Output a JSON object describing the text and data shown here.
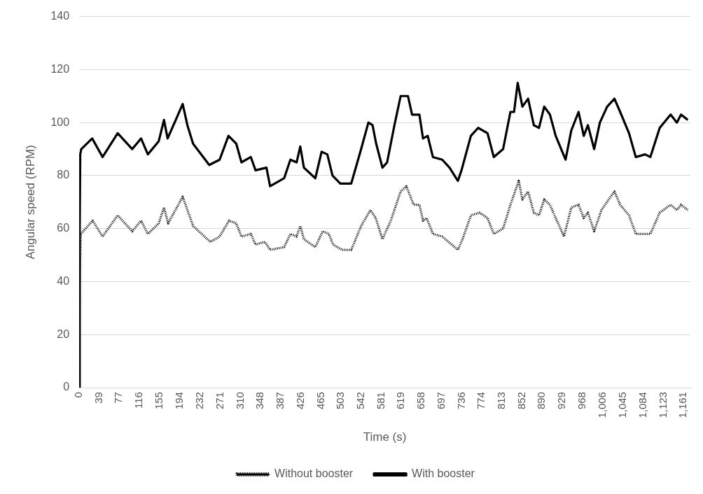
{
  "chart_data": {
    "type": "line",
    "xlabel": "Time (s)",
    "ylabel": "Angular speed (RPM)",
    "xlim": [
      0,
      1175
    ],
    "ylim": [
      0,
      140
    ],
    "xticks": [
      0,
      39,
      77,
      116,
      155,
      194,
      232,
      271,
      310,
      348,
      387,
      426,
      465,
      503,
      542,
      581,
      619,
      658,
      697,
      736,
      774,
      813,
      852,
      890,
      929,
      968,
      {
        "value": 1006,
        "label": "1,006"
      },
      {
        "value": 1045,
        "label": "1,045"
      },
      {
        "value": 1084,
        "label": "1,084"
      },
      {
        "value": 1123,
        "label": "1,123"
      },
      {
        "value": 1161,
        "label": "1,161"
      }
    ],
    "yticks": [
      0,
      20,
      40,
      60,
      80,
      100,
      120,
      140
    ],
    "grid": "y",
    "legend": "bottom",
    "marker": "none",
    "series": [
      {
        "name": "Without booster",
        "color": "#000000",
        "line_style": "dotted",
        "x": [
          0,
          1,
          3,
          26,
          45,
          74,
          102,
          119,
          132,
          153,
          163,
          171,
          199,
          219,
          252,
          270,
          288,
          302,
          312,
          330,
          339,
          357,
          367,
          394,
          406,
          418,
          425,
          432,
          454,
          468,
          480,
          488,
          505,
          523,
          542,
          560,
          570,
          583,
          599,
          618,
          629,
          643,
          654,
          661,
          668,
          680,
          698,
          716,
          728,
          737,
          753,
          770,
          785,
          797,
          815,
          829,
          845,
          852,
          863,
          874,
          884,
          894,
          905,
          916,
          932,
          946,
          960,
          970,
          978,
          990,
          1004,
          1018,
          1029,
          1040,
          1057,
          1070,
          1098,
          1116,
          1137,
          1149,
          1157,
          1170
        ],
        "values": [
          0,
          40,
          58,
          63,
          57,
          65,
          59,
          63,
          58,
          62,
          68,
          62,
          72,
          61,
          55,
          57,
          63,
          62,
          57,
          58,
          54,
          55,
          52,
          53,
          58,
          57,
          61,
          56,
          53,
          59,
          58,
          54,
          52,
          52,
          61,
          67,
          64,
          56,
          63,
          74,
          76,
          69,
          69,
          63,
          64,
          58,
          57,
          54,
          52,
          56,
          65,
          66,
          64,
          58,
          60,
          69,
          78,
          71,
          74,
          66,
          65,
          71,
          69,
          64,
          57,
          68,
          69,
          64,
          66,
          59,
          67,
          71,
          74,
          69,
          65,
          58,
          58,
          66,
          69,
          67,
          69,
          67
        ]
      },
      {
        "name": "With booster",
        "color": "#000000",
        "line_style": "solid",
        "x": [
          0,
          1,
          2,
          4,
          25,
          45,
          74,
          102,
          119,
          132,
          153,
          163,
          170,
          199,
          208,
          219,
          250,
          270,
          287,
          302,
          312,
          330,
          339,
          360,
          367,
          394,
          406,
          418,
          425,
          432,
          454,
          466,
          477,
          487,
          502,
          523,
          542,
          556,
          564,
          571,
          583,
          592,
          606,
          618,
          632,
          640,
          654,
          661,
          670,
          680,
          698,
          712,
          728,
          735,
          753,
          767,
          785,
          797,
          815,
          829,
          836,
          843,
          852,
          863,
          874,
          884,
          894,
          905,
          916,
          935,
          946,
          960,
          970,
          978,
          990,
          1001,
          1015,
          1029,
          1040,
          1057,
          1070,
          1088,
          1098,
          1116,
          1137,
          1149,
          1157,
          1170
        ],
        "values": [
          0,
          60,
          88,
          90,
          94,
          87,
          96,
          90,
          94,
          88,
          93,
          101,
          94,
          107,
          99,
          92,
          84,
          86,
          95,
          92,
          85,
          87,
          82,
          83,
          76,
          79,
          86,
          85,
          91,
          83,
          79,
          89,
          88,
          80,
          77,
          77,
          90,
          100,
          99,
          92,
          83,
          85,
          99,
          110,
          110,
          103,
          103,
          94,
          95,
          87,
          86,
          83,
          78,
          82,
          95,
          98,
          96,
          87,
          90,
          104,
          104,
          115,
          106,
          109,
          99,
          98,
          106,
          103,
          95,
          86,
          97,
          104,
          95,
          99,
          90,
          100,
          106,
          109,
          104,
          96,
          87,
          88,
          87,
          98,
          103,
          100,
          103,
          101
        ]
      }
    ]
  }
}
